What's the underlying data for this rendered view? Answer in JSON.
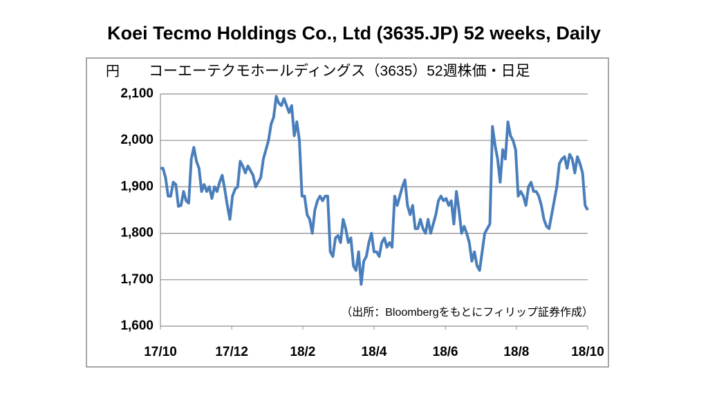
{
  "chart_data": {
    "type": "line",
    "title": "Koei Tecmo Holdings Co., Ltd (3635.JP) 52 weeks, Daily",
    "subtitle": "コーエーテクモホールディングス（3635）52週株価・日足",
    "y_label": "円",
    "annotation": "（出所：Bloombergをもとにフィリップ証券作成）",
    "series": [
      {
        "name": "3635.JP",
        "color": "#4a7ebb",
        "values": [
          1940,
          1940,
          1920,
          1880,
          1880,
          1910,
          1905,
          1858,
          1860,
          1890,
          1870,
          1865,
          1960,
          1985,
          1955,
          1940,
          1890,
          1905,
          1890,
          1900,
          1875,
          1900,
          1890,
          1910,
          1925,
          1895,
          1860,
          1830,
          1880,
          1895,
          1900,
          1955,
          1945,
          1930,
          1945,
          1935,
          1925,
          1900,
          1910,
          1920,
          1960,
          1980,
          2000,
          2035,
          2050,
          2095,
          2080,
          2075,
          2090,
          2075,
          2060,
          2075,
          2010,
          2040,
          2000,
          1880,
          1880,
          1840,
          1830,
          1800,
          1850,
          1870,
          1880,
          1870,
          1880,
          1880,
          1760,
          1750,
          1790,
          1795,
          1780,
          1830,
          1810,
          1780,
          1790,
          1730,
          1720,
          1760,
          1690,
          1740,
          1750,
          1780,
          1800,
          1760,
          1760,
          1750,
          1780,
          1790,
          1770,
          1780,
          1770,
          1880,
          1860,
          1880,
          1900,
          1915,
          1860,
          1840,
          1860,
          1810,
          1810,
          1830,
          1810,
          1800,
          1830,
          1800,
          1820,
          1840,
          1870,
          1880,
          1870,
          1875,
          1860,
          1870,
          1820,
          1890,
          1850,
          1800,
          1815,
          1800,
          1780,
          1740,
          1760,
          1730,
          1720,
          1760,
          1800,
          1810,
          1820,
          2030,
          1990,
          1960,
          1910,
          1980,
          1960,
          2040,
          2010,
          2000,
          1980,
          1880,
          1890,
          1880,
          1860,
          1900,
          1910,
          1890,
          1890,
          1880,
          1860,
          1830,
          1815,
          1810,
          1840,
          1870,
          1900,
          1950,
          1960,
          1965,
          1940,
          1970,
          1960,
          1930,
          1965,
          1950,
          1930,
          1860,
          1850
        ]
      }
    ],
    "xlim": [
      0,
      166
    ],
    "xticks": [
      {
        "value": 0,
        "label": "17/10"
      },
      {
        "value": 27.7,
        "label": "17/12"
      },
      {
        "value": 55.3,
        "label": "18/2"
      },
      {
        "value": 83,
        "label": "18/4"
      },
      {
        "value": 110.7,
        "label": "18/6"
      },
      {
        "value": 138.3,
        "label": "18/8"
      },
      {
        "value": 166,
        "label": "18/10"
      }
    ],
    "ylim": [
      1600,
      2100
    ],
    "yticks": [
      {
        "value": 1600,
        "label": "1,600"
      },
      {
        "value": 1700,
        "label": "1,700"
      },
      {
        "value": 1800,
        "label": "1,800"
      },
      {
        "value": 1900,
        "label": "1,900"
      },
      {
        "value": 2000,
        "label": "2,000"
      },
      {
        "value": 2100,
        "label": "2,100"
      }
    ],
    "grid": true
  }
}
